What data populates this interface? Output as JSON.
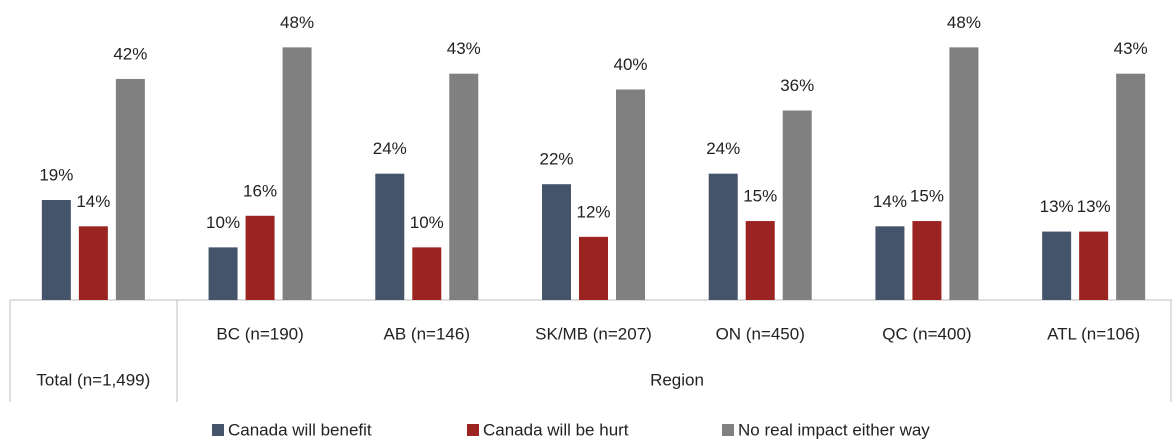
{
  "chart_data": {
    "type": "bar",
    "categories": [
      "Total (n=1,499)",
      "BC (n=190)",
      "AB (n=146)",
      "SK/MB (n=207)",
      "ON (n=450)",
      "QC (n=400)",
      "ATL (n=106)"
    ],
    "group_label": "Region",
    "series": [
      {
        "name": "Canada will benefit",
        "color": "#44546a",
        "values": [
          19,
          10,
          24,
          22,
          24,
          14,
          13
        ],
        "value_labels": [
          "19%",
          "10%",
          "24%",
          "22%",
          "24%",
          "14%",
          "13%"
        ]
      },
      {
        "name": "Canada will be hurt",
        "color": "#9b2423",
        "values": [
          14,
          16,
          10,
          12,
          15,
          15,
          13
        ],
        "value_labels": [
          "14%",
          "16%",
          "10%",
          "12%",
          "15%",
          "15%",
          "13%"
        ]
      },
      {
        "name": "No real impact either way",
        "color": "#808080",
        "values": [
          42,
          48,
          43,
          40,
          36,
          48,
          43
        ],
        "value_labels": [
          "42%",
          "48%",
          "43%",
          "40%",
          "36%",
          "48%",
          "43%"
        ]
      }
    ],
    "ylim": [
      0,
      57
    ],
    "legend": "bottom"
  }
}
